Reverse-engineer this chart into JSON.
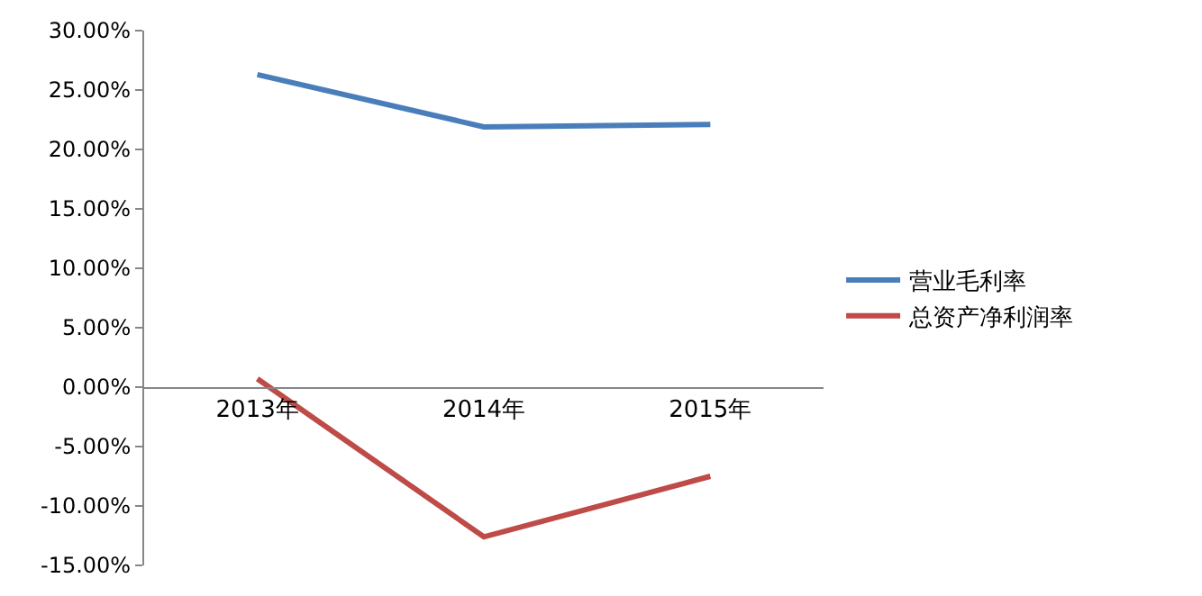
{
  "chart_data": {
    "type": "line",
    "categories": [
      "2013年",
      "2014年",
      "2015年"
    ],
    "series": [
      {
        "name": "营业毛利率",
        "color": "#4a7ebb",
        "values": [
          26.3,
          21.9,
          22.1
        ]
      },
      {
        "name": "总资产净利润率",
        "color": "#be4b48",
        "values": [
          0.7,
          -12.6,
          -7.5
        ]
      }
    ],
    "ylim": [
      -15,
      30
    ],
    "yticks": [
      {
        "value": -15,
        "label": "-15.00%"
      },
      {
        "value": -10,
        "label": "-10.00%"
      },
      {
        "value": -5,
        "label": "-5.00%"
      },
      {
        "value": 0,
        "label": "0.00%"
      },
      {
        "value": 5,
        "label": "5.00%"
      },
      {
        "value": 10,
        "label": "10.00%"
      },
      {
        "value": 15,
        "label": "15.00%"
      },
      {
        "value": 20,
        "label": "20.00%"
      },
      {
        "value": 25,
        "label": "25.00%"
      },
      {
        "value": 30,
        "label": "30.00%"
      }
    ],
    "grid": false,
    "legend": "right",
    "marker": "none",
    "line_style": "solid"
  }
}
